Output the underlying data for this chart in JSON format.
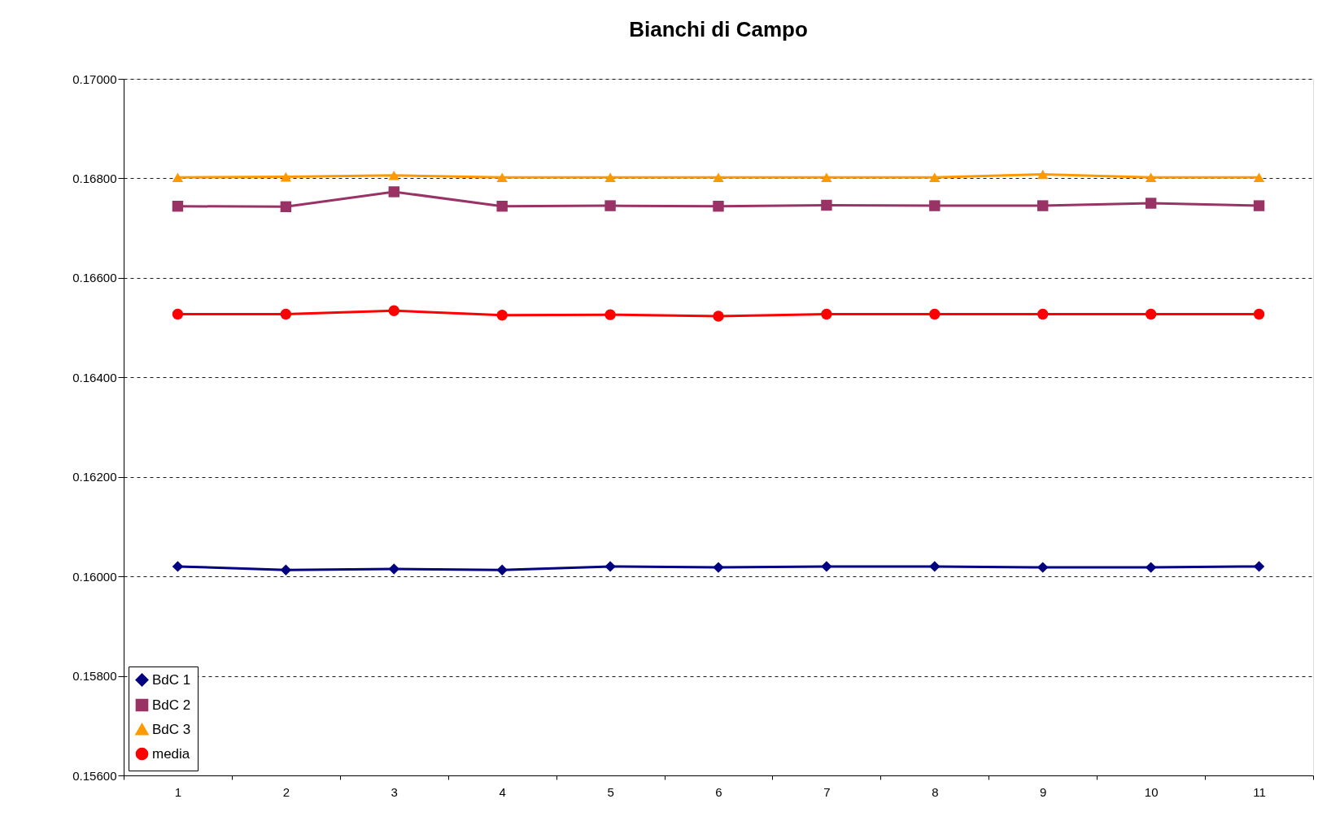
{
  "chart_data": {
    "type": "line",
    "title": "Bianchi di Campo",
    "categories": [
      "1",
      "2",
      "3",
      "4",
      "5",
      "6",
      "7",
      "8",
      "9",
      "10",
      "11"
    ],
    "series": [
      {
        "name": "BdC 1",
        "color": "#000080",
        "marker": "diamond",
        "values": [
          0.1602,
          0.16013,
          0.16015,
          0.16013,
          0.1602,
          0.16018,
          0.1602,
          0.1602,
          0.16018,
          0.16018,
          0.1602
        ]
      },
      {
        "name": "BdC 2",
        "color": "#993366",
        "marker": "square",
        "values": [
          0.16744,
          0.16743,
          0.16773,
          0.16744,
          0.16745,
          0.16744,
          0.16746,
          0.16745,
          0.16745,
          0.1675,
          0.16745
        ]
      },
      {
        "name": "BdC 3",
        "color": "#ff9900",
        "marker": "triangle",
        "values": [
          0.16802,
          0.16803,
          0.16806,
          0.16802,
          0.16802,
          0.16802,
          0.16802,
          0.16802,
          0.16808,
          0.16802,
          0.16802
        ]
      },
      {
        "name": "media",
        "color": "#ff0000",
        "marker": "circle",
        "values": [
          0.16527,
          0.16527,
          0.16534,
          0.16525,
          0.16526,
          0.16523,
          0.16527,
          0.16527,
          0.16527,
          0.16527,
          0.16527
        ]
      }
    ],
    "ylim": [
      0.156,
      0.17
    ],
    "yticks": [
      {
        "value": 0.156,
        "label": "0.15600"
      },
      {
        "value": 0.158,
        "label": "0.15800"
      },
      {
        "value": 0.16,
        "label": "0.16000"
      },
      {
        "value": 0.162,
        "label": "0.16200"
      },
      {
        "value": 0.164,
        "label": "0.16400"
      },
      {
        "value": 0.166,
        "label": "0.16600"
      },
      {
        "value": 0.168,
        "label": "0.16800"
      },
      {
        "value": 0.17,
        "label": "0.17000"
      }
    ],
    "grid": "y",
    "legend": "bottom left",
    "line_style": "solid"
  }
}
